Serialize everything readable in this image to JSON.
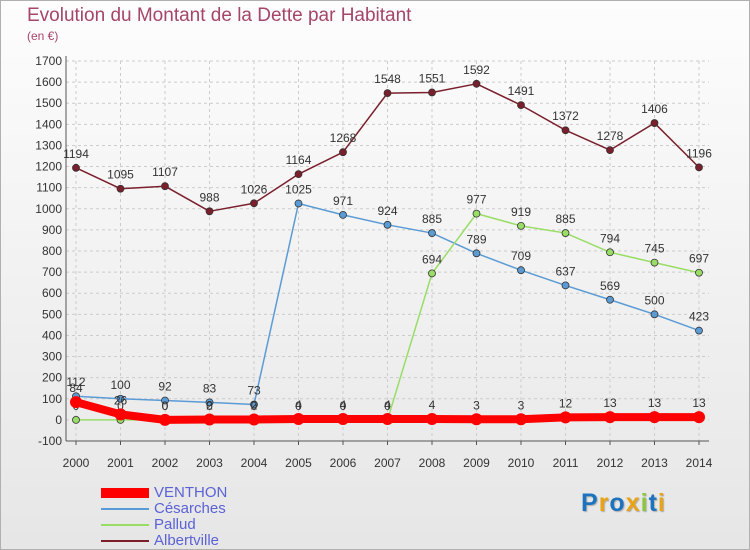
{
  "chart_data": {
    "type": "line",
    "title": "Evolution du Montant de la Dette par Habitant",
    "subtitle": "(en €)",
    "xlabel": "",
    "ylabel": "",
    "ylim": [
      -100,
      1700
    ],
    "yticks": [
      -100,
      0,
      100,
      200,
      300,
      400,
      500,
      600,
      700,
      800,
      900,
      1000,
      1100,
      1200,
      1300,
      1400,
      1500,
      1600,
      1700
    ],
    "categories": [
      "2000",
      "2001",
      "2002",
      "2003",
      "2004",
      "2005",
      "2006",
      "2007",
      "2008",
      "2009",
      "2010",
      "2011",
      "2012",
      "2013",
      "2014"
    ],
    "grid": true,
    "legend_position": "bottom-left",
    "series": [
      {
        "name": "Albertville",
        "color": "#7a1f2b",
        "values": [
          1194,
          1095,
          1107,
          988,
          1026,
          1164,
          1268,
          1548,
          1551,
          1592,
          1491,
          1372,
          1278,
          1406,
          1196
        ],
        "labels": [
          "1194",
          "1095",
          "1107",
          "988",
          "1026",
          "1164",
          "1268",
          "1548",
          "1551",
          "1592",
          "1491",
          "1372",
          "1278",
          "1406",
          "1196"
        ]
      },
      {
        "name": "Césarches",
        "color": "#5b9bd5",
        "values": [
          112,
          100,
          92,
          83,
          73,
          1025,
          971,
          924,
          885,
          789,
          709,
          637,
          569,
          500,
          423
        ],
        "labels": [
          "112",
          "100",
          "92",
          "83",
          "73",
          "1025",
          "971",
          "924",
          "885",
          "789",
          "709",
          "637",
          "569",
          "500",
          "423"
        ]
      },
      {
        "name": "Pallud",
        "color": "#99dd66",
        "values": [
          0,
          0,
          0,
          0,
          0,
          0,
          0,
          0,
          694,
          977,
          919,
          885,
          794,
          745,
          697
        ],
        "labels": [
          "0",
          "0",
          "0",
          "0",
          "0",
          "0",
          "0",
          "0",
          "694",
          "977",
          "919",
          "885",
          "794",
          "745",
          "697"
        ]
      },
      {
        "name": "VENTHON",
        "color": "#ff0000",
        "values": [
          84,
          26,
          0,
          2,
          2,
          4,
          4,
          4,
          4,
          3,
          3,
          12,
          13,
          13,
          13
        ],
        "labels": [
          "84",
          "26",
          "0",
          "2",
          "2",
          "4",
          "4",
          "4",
          "4",
          "3",
          "3",
          "12",
          "13",
          "13",
          "13"
        ]
      }
    ],
    "legend_order": [
      "VENTHON",
      "Césarches",
      "Pallud",
      "Albertville"
    ],
    "logo_text": "Proxiti",
    "logo_colors": [
      "#1e73be",
      "#e8a317",
      "#1e73be",
      "#e8a317",
      "#8cc63f",
      "#1e73be",
      "#e8a317"
    ],
    "axis_color": "#555555",
    "grid_color": "#cccccc",
    "title_color": "#a5456a",
    "legend_text_color": "#5a62d6"
  }
}
